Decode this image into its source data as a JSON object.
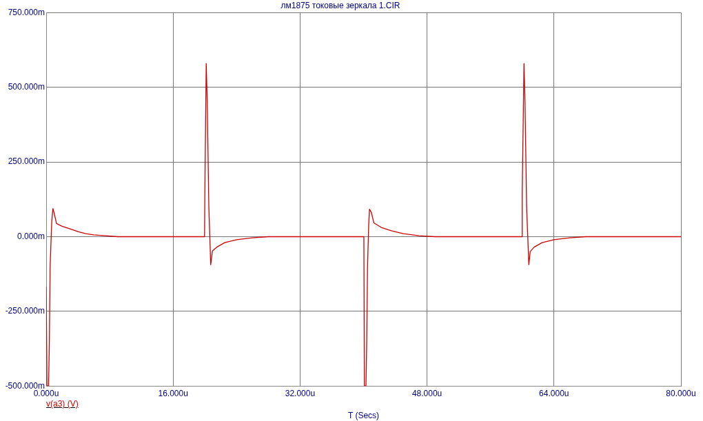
{
  "chart_data": {
    "type": "line",
    "title": "лм1875 токовые зеркала 1.CIR",
    "xlabel": "T (Secs)",
    "xlim": [
      0,
      80
    ],
    "xticks": [
      {
        "value": 0,
        "label": "0.000u"
      },
      {
        "value": 16,
        "label": "16.000u"
      },
      {
        "value": 32,
        "label": "32.000u"
      },
      {
        "value": 48,
        "label": "48.000u"
      },
      {
        "value": 64,
        "label": "64.000u"
      },
      {
        "value": 80,
        "label": "80.000u"
      }
    ],
    "ylim": [
      -500,
      750
    ],
    "yticks": [
      {
        "value": -500,
        "label": "-500.000m"
      },
      {
        "value": -250,
        "label": "-250.000m"
      },
      {
        "value": 0,
        "label": "0.000m"
      },
      {
        "value": 250,
        "label": "250.000m"
      },
      {
        "value": 500,
        "label": "500.000m"
      },
      {
        "value": 750,
        "label": "750.000m"
      }
    ],
    "grid": true,
    "legend": "bottom left",
    "marker": "none",
    "line_style": "solid",
    "series": [
      {
        "name": "v(a3) (V)",
        "color": "#cc0000",
        "x": [
          0,
          0.1,
          0.3,
          0.4,
          0.5,
          0.7,
          0.85,
          1.0,
          1.3,
          2.0,
          3.0,
          4.0,
          5.0,
          6.0,
          7.5,
          9.0,
          19.96,
          20.0,
          20.17,
          20.3,
          20.5,
          20.74,
          20.95,
          21.5,
          22.5,
          24,
          26,
          28,
          40.04,
          40.1,
          40.3,
          40.4,
          40.5,
          40.65,
          40.75,
          41.0,
          41.3,
          42.3,
          43.5,
          45,
          47,
          49,
          59.96,
          60.0,
          60.22,
          60.35,
          60.55,
          60.83,
          61.0,
          61.5,
          62.5,
          64,
          66,
          68,
          80
        ],
        "values": [
          -168,
          -500,
          -500,
          -357,
          -100,
          50,
          94,
          80,
          44,
          35,
          26,
          17,
          10,
          6,
          3,
          0,
          0,
          150,
          580,
          450,
          100,
          -94,
          -48,
          -35,
          -20,
          -10,
          -4,
          0,
          0,
          -500,
          -500,
          -350,
          -100,
          40,
          92,
          80,
          46,
          30,
          20,
          10,
          3,
          0,
          0,
          150,
          580,
          450,
          100,
          -94,
          -50,
          -35,
          -20,
          -10,
          -4,
          0,
          0
        ]
      }
    ]
  }
}
